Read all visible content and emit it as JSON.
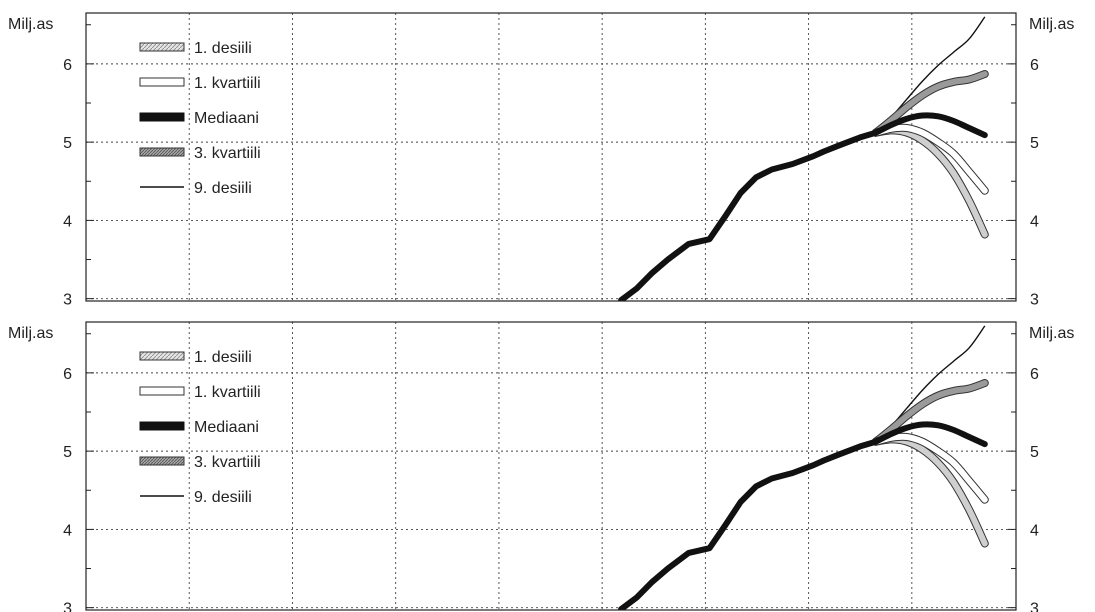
{
  "chart_data": [
    {
      "type": "line",
      "ylabel_left": "Milj.as",
      "ylabel_right": "Milj.as",
      "yticks": [
        "3",
        "4",
        "5",
        "6"
      ],
      "ylim": [
        2.97,
        6.65
      ],
      "xlim": [
        0,
        17.9
      ],
      "grid": true,
      "legend_position": "top-left",
      "legend": [
        {
          "label": "1. desiili",
          "style": "light-hatched"
        },
        {
          "label": "1. kvartiili",
          "style": "white-outlined"
        },
        {
          "label": "Mediaani",
          "style": "thick-black"
        },
        {
          "label": "3. kvartiili",
          "style": "dark-hatched"
        },
        {
          "label": "9. desiili",
          "style": "thin-black"
        }
      ],
      "history": {
        "x": [
          10.3,
          10.6,
          10.9,
          11.2,
          11.6,
          12.0,
          12.3,
          12.6,
          12.9,
          13.2,
          13.6,
          14.0,
          14.2,
          14.5,
          14.9,
          15.2
        ],
        "y": [
          2.98,
          3.13,
          3.33,
          3.5,
          3.7,
          3.76,
          4.05,
          4.35,
          4.55,
          4.65,
          4.72,
          4.82,
          4.88,
          4.96,
          5.06,
          5.12
        ]
      },
      "fan": {
        "x": [
          15.2,
          15.5,
          15.8,
          16.1,
          16.4,
          16.7,
          17.0,
          17.3
        ],
        "series": [
          {
            "key": "d1",
            "values": [
              5.12,
              5.15,
              5.12,
              5.02,
              4.85,
              4.6,
              4.25,
              3.82
            ]
          },
          {
            "key": "q1",
            "values": [
              5.12,
              5.17,
              5.18,
              5.12,
              5.0,
              4.85,
              4.62,
              4.38
            ]
          },
          {
            "key": "median",
            "values": [
              5.12,
              5.22,
              5.3,
              5.34,
              5.33,
              5.27,
              5.18,
              5.09
            ]
          },
          {
            "key": "q3",
            "values": [
              5.12,
              5.28,
              5.45,
              5.6,
              5.71,
              5.77,
              5.8,
              5.87
            ]
          },
          {
            "key": "d9",
            "values": [
              5.12,
              5.32,
              5.55,
              5.78,
              5.98,
              6.15,
              6.32,
              6.6
            ]
          }
        ]
      }
    },
    {
      "type": "line",
      "ylabel_left": "Milj.as",
      "ylabel_right": "Milj.as",
      "yticks": [
        "3",
        "4",
        "5",
        "6"
      ],
      "ylim": [
        2.97,
        6.65
      ],
      "xlim": [
        0,
        17.9
      ],
      "grid": true,
      "legend_position": "top-left",
      "legend": [
        {
          "label": "1. desiili",
          "style": "light-hatched"
        },
        {
          "label": "1. kvartiili",
          "style": "white-outlined"
        },
        {
          "label": "Mediaani",
          "style": "thick-black"
        },
        {
          "label": "3. kvartiili",
          "style": "dark-hatched"
        },
        {
          "label": "9. desiili",
          "style": "thin-black"
        }
      ],
      "history": {
        "x": [
          10.3,
          10.6,
          10.9,
          11.2,
          11.6,
          12.0,
          12.3,
          12.6,
          12.9,
          13.2,
          13.6,
          14.0,
          14.2,
          14.5,
          14.9,
          15.2
        ],
        "y": [
          2.98,
          3.13,
          3.33,
          3.5,
          3.7,
          3.76,
          4.05,
          4.35,
          4.55,
          4.65,
          4.72,
          4.82,
          4.88,
          4.96,
          5.06,
          5.12
        ]
      },
      "fan": {
        "x": [
          15.2,
          15.5,
          15.8,
          16.1,
          16.4,
          16.7,
          17.0,
          17.3
        ],
        "series": [
          {
            "key": "d1",
            "values": [
              5.12,
              5.15,
              5.12,
              5.02,
              4.85,
              4.6,
              4.25,
              3.82
            ]
          },
          {
            "key": "q1",
            "values": [
              5.12,
              5.17,
              5.18,
              5.12,
              5.0,
              4.85,
              4.62,
              4.38
            ]
          },
          {
            "key": "median",
            "values": [
              5.12,
              5.22,
              5.3,
              5.34,
              5.33,
              5.27,
              5.18,
              5.09
            ]
          },
          {
            "key": "q3",
            "values": [
              5.12,
              5.28,
              5.45,
              5.6,
              5.71,
              5.77,
              5.8,
              5.87
            ]
          },
          {
            "key": "d9",
            "values": [
              5.12,
              5.32,
              5.55,
              5.78,
              5.98,
              6.15,
              6.32,
              6.6
            ]
          }
        ]
      }
    }
  ]
}
